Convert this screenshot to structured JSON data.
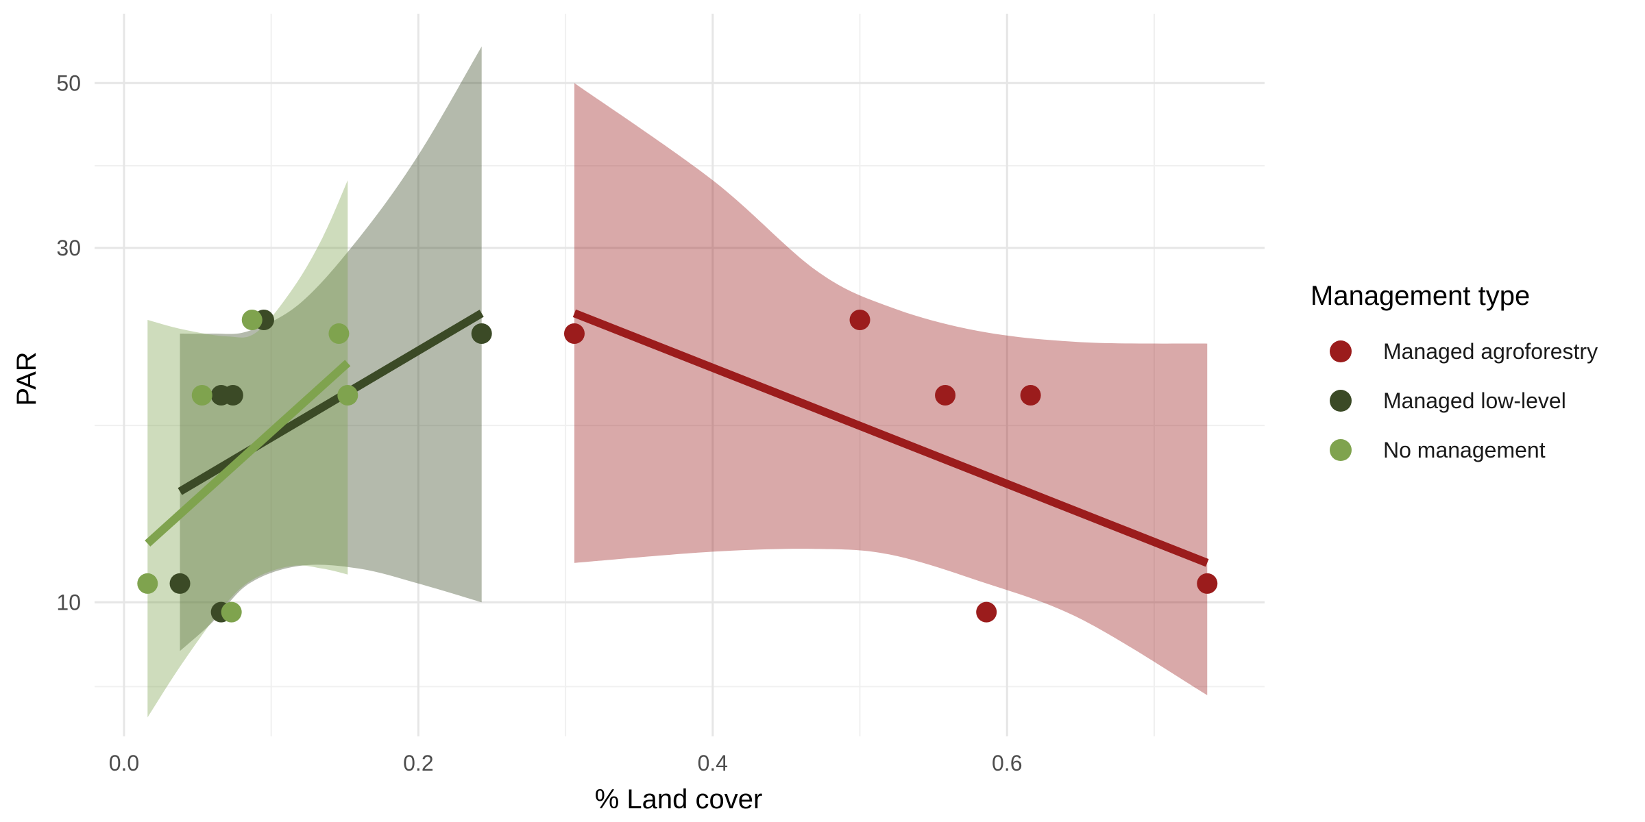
{
  "chart_data": {
    "type": "scatter",
    "xlabel": "% Land cover",
    "ylabel": "PAR",
    "xlim": [
      -0.02,
      0.775
    ],
    "ylim": [
      6.6,
      62
    ],
    "y_scale": "log",
    "x_ticks": [
      0.0,
      0.2,
      0.4,
      0.6
    ],
    "x_tick_labels": [
      "0.0",
      "0.2",
      "0.4",
      "0.6"
    ],
    "x_minor_ticks": [
      0.1,
      0.3,
      0.5,
      0.7
    ],
    "y_ticks": [
      10,
      30,
      50
    ],
    "y_tick_labels": [
      "10",
      "30",
      "50"
    ],
    "y_minor_ticks": [
      7.7,
      17.3,
      38.7
    ],
    "grid": true,
    "legend": {
      "title": "Management type",
      "placement": "right",
      "entries": [
        "Managed agroforestry",
        "Managed low-level",
        "No management"
      ]
    },
    "series": [
      {
        "name": "Managed agroforestry",
        "color": "#9B1C1C",
        "points": [
          {
            "x": 0.306,
            "y": 23.0
          },
          {
            "x": 0.5,
            "y": 24.0
          },
          {
            "x": 0.558,
            "y": 19.0
          },
          {
            "x": 0.616,
            "y": 19.0
          },
          {
            "x": 0.586,
            "y": 9.7
          },
          {
            "x": 0.736,
            "y": 10.6
          }
        ],
        "fit": [
          {
            "x": 0.306,
            "y": 24.5
          },
          {
            "x": 0.736,
            "y": 11.3
          }
        ],
        "band": [
          {
            "x": 0.306,
            "upper": 50.0,
            "lower": 11.3
          },
          {
            "x": 0.4,
            "upper": 37.0,
            "lower": 11.7
          },
          {
            "x": 0.47,
            "upper": 28.0,
            "lower": 11.8
          },
          {
            "x": 0.52,
            "upper": 25.0,
            "lower": 11.6
          },
          {
            "x": 0.58,
            "upper": 23.2,
            "lower": 10.7
          },
          {
            "x": 0.65,
            "upper": 22.4,
            "lower": 9.5
          },
          {
            "x": 0.736,
            "upper": 22.3,
            "lower": 7.5
          }
        ]
      },
      {
        "name": "Managed low-level",
        "color": "#3B4A26",
        "points": [
          {
            "x": 0.038,
            "y": 10.6
          },
          {
            "x": 0.066,
            "y": 9.7
          },
          {
            "x": 0.066,
            "y": 19.0
          },
          {
            "x": 0.074,
            "y": 19.0
          },
          {
            "x": 0.095,
            "y": 24.0
          },
          {
            "x": 0.243,
            "y": 23.0
          }
        ],
        "fit": [
          {
            "x": 0.038,
            "y": 14.1
          },
          {
            "x": 0.243,
            "y": 24.5
          }
        ],
        "band": [
          {
            "x": 0.038,
            "upper": 23.0,
            "lower": 8.6
          },
          {
            "x": 0.06,
            "upper": 23.0,
            "lower": 9.4
          },
          {
            "x": 0.085,
            "upper": 23.2,
            "lower": 10.6
          },
          {
            "x": 0.12,
            "upper": 25.3,
            "lower": 11.2
          },
          {
            "x": 0.16,
            "upper": 31.0,
            "lower": 11.1
          },
          {
            "x": 0.2,
            "upper": 40.0,
            "lower": 10.6
          },
          {
            "x": 0.243,
            "upper": 56.0,
            "lower": 10.0
          }
        ]
      },
      {
        "name": "No management",
        "color": "#7FA34E",
        "points": [
          {
            "x": 0.016,
            "y": 10.6
          },
          {
            "x": 0.053,
            "y": 19.0
          },
          {
            "x": 0.073,
            "y": 9.7
          },
          {
            "x": 0.087,
            "y": 24.0
          },
          {
            "x": 0.146,
            "y": 23.0
          },
          {
            "x": 0.152,
            "y": 19.0
          }
        ],
        "fit": [
          {
            "x": 0.016,
            "y": 12.0
          },
          {
            "x": 0.152,
            "y": 21.0
          }
        ],
        "band": [
          {
            "x": 0.016,
            "upper": 24.0,
            "lower": 7.0
          },
          {
            "x": 0.04,
            "upper": 23.3,
            "lower": 8.3
          },
          {
            "x": 0.07,
            "upper": 22.8,
            "lower": 10.0
          },
          {
            "x": 0.09,
            "upper": 23.1,
            "lower": 10.8
          },
          {
            "x": 0.115,
            "upper": 26.5,
            "lower": 11.2
          },
          {
            "x": 0.135,
            "upper": 31.0,
            "lower": 11.1
          },
          {
            "x": 0.152,
            "upper": 37.0,
            "lower": 10.9
          }
        ]
      }
    ]
  }
}
